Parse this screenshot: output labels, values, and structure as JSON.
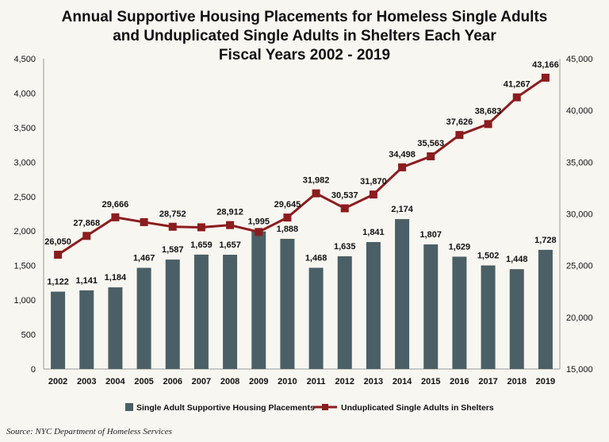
{
  "chart_data": {
    "type": "bar+line",
    "title_lines": [
      "Annual Supportive Housing Placements for Homeless Single Adults",
      "and Unduplicated Single Adults in Shelters Each Year",
      "Fiscal Years 2002 - 2019"
    ],
    "categories": [
      "2002",
      "2003",
      "2004",
      "2005",
      "2006",
      "2007",
      "2008",
      "2009",
      "2010",
      "2011",
      "2012",
      "2013",
      "2014",
      "2015",
      "2016",
      "2017",
      "2018",
      "2019"
    ],
    "series": [
      {
        "name": "Single Adult Supportive Housing Placements",
        "type": "bar",
        "axis": "left",
        "color": "#4b5f66",
        "values": [
          1122,
          1141,
          1184,
          1467,
          1587,
          1659,
          1657,
          1995,
          1888,
          1468,
          1635,
          1841,
          2174,
          1807,
          1629,
          1502,
          1448,
          1728
        ],
        "labels": [
          "1,122",
          "1,141",
          "1,184",
          "1,467",
          "1,587",
          "1,659",
          "1,657",
          "1,995",
          "1,888",
          "1,468",
          "1,635",
          "1,841",
          "2,174",
          "1,807",
          "1,629",
          "1,502",
          "1,448",
          "1,728"
        ]
      },
      {
        "name": "Unduplicated Single Adults in Shelters",
        "type": "line",
        "axis": "right",
        "color": "#8b1c1f",
        "values": [
          26050,
          27868,
          29666,
          29200,
          28752,
          28700,
          28912,
          28250,
          29645,
          31982,
          30537,
          31870,
          34498,
          35563,
          37626,
          38683,
          41267,
          43166
        ],
        "labels": [
          "26,050",
          "27,868",
          "29,666",
          "",
          "28,752",
          "",
          "28,912",
          "",
          "29,645",
          "31,982",
          "30,537",
          "31,870",
          "34,498",
          "35,563",
          "37,626",
          "38,683",
          "41,267",
          "43,166"
        ]
      }
    ],
    "left_axis": {
      "range": [
        0,
        4500
      ],
      "ticks": [
        "0",
        "500",
        "1,000",
        "1,500",
        "2,000",
        "2,500",
        "3,000",
        "3,500",
        "4,000",
        "4,500"
      ]
    },
    "right_axis": {
      "range": [
        15000,
        45000
      ],
      "ticks": [
        "15,000",
        "20,000",
        "25,000",
        "30,000",
        "35,000",
        "40,000",
        "45,000"
      ]
    },
    "grid": false,
    "legend_position": "bottom"
  },
  "source": "Source: NYC Department of Homeless Services"
}
